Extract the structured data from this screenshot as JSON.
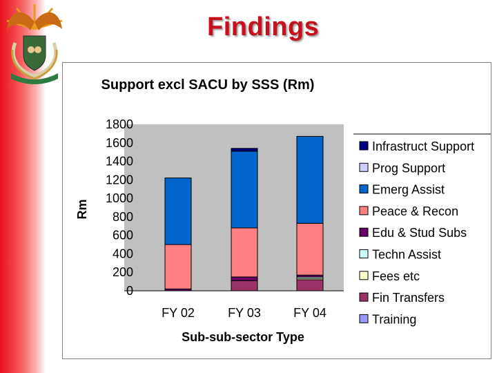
{
  "slide": {
    "title": "Findings"
  },
  "chart_data": {
    "type": "bar",
    "stacked": true,
    "title": "Support excl SACU by SSS (Rm)",
    "xlabel": "Sub-sub-sector Type",
    "ylabel": "Rm",
    "ylim": [
      0,
      1800
    ],
    "yticks": [
      "1800",
      "1600",
      "1400",
      "1200",
      "1000",
      "800",
      "600",
      "400",
      "200",
      "0"
    ],
    "categories": [
      "FY 02",
      "FY 03",
      "FY 04"
    ],
    "legend_position": "right",
    "plot_background": "#c0c0c0",
    "series": [
      {
        "name": "Training",
        "color": "#9999ff",
        "values": [
          0,
          0,
          0
        ]
      },
      {
        "name": "Fin Transfers",
        "color": "#993366",
        "values": [
          0,
          110,
          120
        ]
      },
      {
        "name": "Fees etc",
        "color": "#ffffcc",
        "values": [
          0,
          0,
          15
        ]
      },
      {
        "name": "Techn Assist",
        "color": "#ccffff",
        "values": [
          0,
          0,
          15
        ]
      },
      {
        "name": "Edu & Stud Subs",
        "color": "#660066",
        "values": [
          20,
          40,
          20
        ]
      },
      {
        "name": "Peace & Recon",
        "color": "#ff8080",
        "values": [
          480,
          530,
          560
        ]
      },
      {
        "name": "Emerg Assist",
        "color": "#0066cc",
        "values": [
          720,
          830,
          940
        ]
      },
      {
        "name": "Prog Support",
        "color": "#ccccff",
        "values": [
          0,
          0,
          0
        ]
      },
      {
        "name": "Infrastruct Support",
        "color": "#000080",
        "values": [
          0,
          30,
          0
        ]
      }
    ]
  }
}
